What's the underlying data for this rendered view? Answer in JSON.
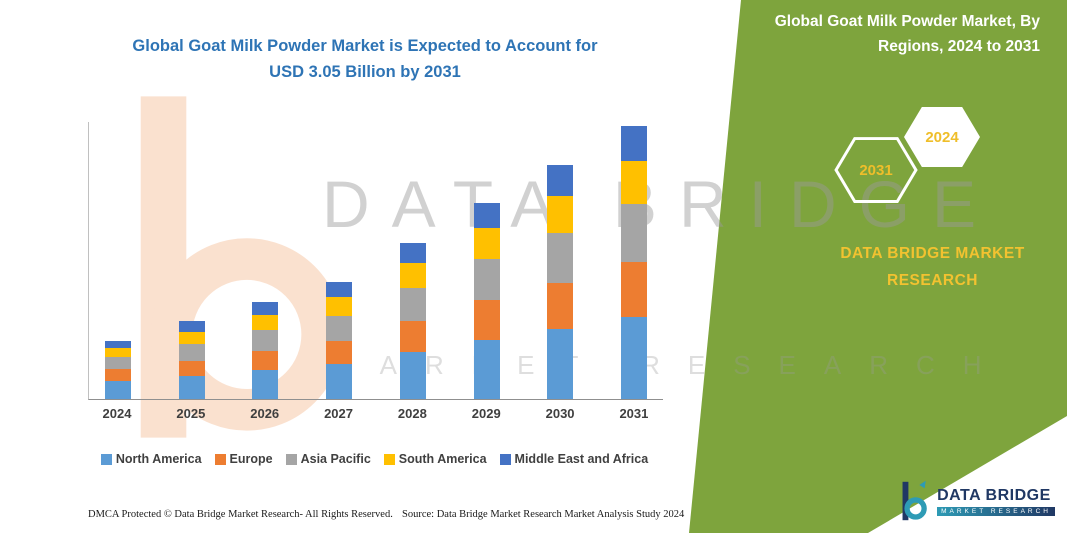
{
  "chart_area": {
    "title_line1": "Global Goat Milk Powder Market is Expected to Account for",
    "title_line2": "USD 3.05 Billion by 2031"
  },
  "right_panel": {
    "title_line1": "Global Goat Milk Powder Market, By",
    "title_line2": "Regions, 2024 to 2031",
    "badge_back": "2031",
    "badge_front": "2024",
    "brand_line1": "DATA BRIDGE MARKET",
    "brand_line2": "RESEARCH",
    "panel_color": "#7EA43D",
    "accent_yellow": "#F2C230"
  },
  "watermark": {
    "line1": "DATA BRIDGE",
    "line2": "MARKET RESEARCH"
  },
  "footer": {
    "dmca": "DMCA Protected © Data Bridge Market Research-  All Rights Reserved.",
    "source": "Source: Data Bridge Market Research  Market Analysis Study 2024"
  },
  "logo": {
    "name": "DATA BRIDGE",
    "subtitle": "MARKET RESEARCH"
  },
  "chart_data": {
    "type": "bar",
    "stacked": true,
    "title": "Global Goat Milk Powder Market is Expected to Account for USD 3.05 Billion by 2031",
    "unit": "USD Billion",
    "annotation_total_2031": "USD 3.05 Billion",
    "categories": [
      "2024",
      "2025",
      "2026",
      "2027",
      "2028",
      "2029",
      "2030",
      "2031"
    ],
    "series": [
      {
        "name": "North America",
        "color": "#5B9BD5",
        "values": [
          0.2,
          0.26,
          0.32,
          0.39,
          0.52,
          0.66,
          0.78,
          0.92
        ]
      },
      {
        "name": "Europe",
        "color": "#ED7D31",
        "values": [
          0.13,
          0.17,
          0.22,
          0.26,
          0.35,
          0.44,
          0.52,
          0.61
        ]
      },
      {
        "name": "Asia Pacific",
        "color": "#A5A5A5",
        "values": [
          0.14,
          0.18,
          0.23,
          0.28,
          0.37,
          0.46,
          0.55,
          0.64
        ]
      },
      {
        "name": "South America",
        "color": "#FFC000",
        "values": [
          0.1,
          0.14,
          0.17,
          0.21,
          0.28,
          0.35,
          0.42,
          0.49
        ]
      },
      {
        "name": "Middle East and Africa",
        "color": "#4472C4",
        "values": [
          0.08,
          0.12,
          0.14,
          0.17,
          0.22,
          0.28,
          0.34,
          0.39
        ]
      }
    ],
    "ylim": [
      0,
      3.1
    ],
    "grid": false,
    "legend_position": "bottom",
    "xlabel": "",
    "ylabel": ""
  }
}
